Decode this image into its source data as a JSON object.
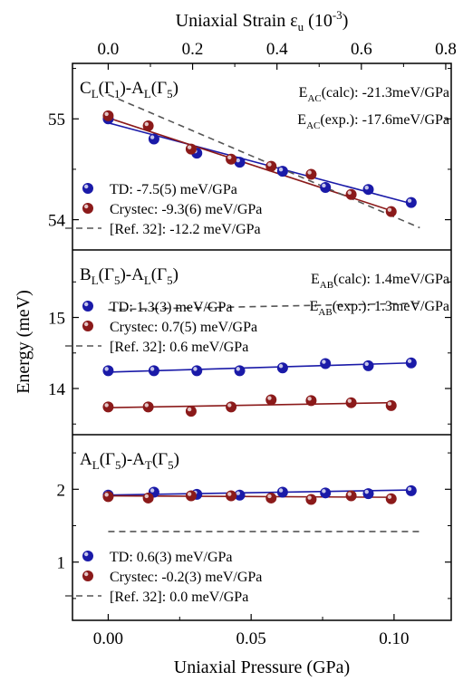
{
  "chart_data": {
    "type": "scatter",
    "x_axis_bottom": {
      "label": "Uniaxial Pressure (GPa)",
      "range": [
        -0.0125,
        0.12
      ],
      "ticks": [
        0.0,
        0.05,
        0.1
      ],
      "tick_labels": [
        "0.00",
        "0.05",
        "0.10"
      ]
    },
    "x_axis_top": {
      "label_main": "Uniaxial Strain ε",
      "label_sub": "u",
      "label_tail": " (10",
      "label_exp": "-3",
      "label_close": ")",
      "ticks": [
        0.0,
        0.2,
        0.4,
        0.6,
        0.8
      ],
      "tick_labels": [
        "0.0",
        "0.2",
        "0.4",
        "0.6",
        "0.8"
      ],
      "zero_at_pressure": 0.0,
      "pressure_per_unit": 0.1476
    },
    "y_label": "Energy (meV)",
    "colors": {
      "td": "#1a1aa8",
      "crystec": "#8b1a1a",
      "ref": "#555555",
      "ref_text": "#555555"
    },
    "panels": [
      {
        "id": "CA",
        "label_parts": [
          "C",
          "L",
          "(Γ",
          "1",
          ")-A",
          "L",
          "(Γ",
          "5",
          ")"
        ],
        "ylim": [
          53.7,
          55.55
        ],
        "yticks": [
          54,
          55
        ],
        "ytick_labels": [
          "54",
          "55"
        ],
        "annotations": [
          {
            "main": "E",
            "sub": "AC",
            "text": "(calc): -21.3meV/GPa"
          },
          {
            "main": "E",
            "sub": "AC",
            "text": "(exp.): -17.6meV/GPa"
          }
        ],
        "legend": [
          {
            "kind": "td",
            "text": "TD: -7.5(5) meV/GPa"
          },
          {
            "kind": "crystec",
            "text": "Crystec: -9.3(6) meV/GPa"
          },
          {
            "kind": "ref",
            "text": "[Ref. 32]: -12.2 meV/GPa"
          }
        ],
        "series": [
          {
            "name": "TD",
            "kind": "td",
            "x": [
              0.0,
              0.016,
              0.031,
              0.046,
              0.061,
              0.076,
              0.091,
              0.106
            ],
            "y": [
              55.0,
              54.8,
              54.66,
              54.57,
              54.48,
              54.32,
              54.3,
              54.17
            ],
            "fit": [
              [
                0.0,
                54.96
              ],
              [
                0.106,
                54.16
              ]
            ]
          },
          {
            "name": "Crystec",
            "kind": "crystec",
            "x": [
              0.0,
              0.014,
              0.029,
              0.043,
              0.057,
              0.071,
              0.085,
              0.099
            ],
            "y": [
              55.03,
              54.93,
              54.7,
              54.6,
              54.53,
              54.45,
              54.25,
              54.08
            ],
            "fit": [
              [
                0.0,
                55.01
              ],
              [
                0.099,
                54.09
              ]
            ]
          },
          {
            "name": "[Ref. 32]",
            "kind": "ref",
            "dashed": true,
            "fit": [
              [
                0.0,
                55.24
              ],
              [
                0.109,
                53.92
              ]
            ]
          }
        ]
      },
      {
        "id": "BA",
        "label_parts": [
          "B",
          "L",
          "(Γ",
          "5",
          ")-A",
          "L",
          "(Γ",
          "5",
          ")"
        ],
        "ylim": [
          13.35,
          15.95
        ],
        "yticks": [
          14,
          15
        ],
        "ytick_labels": [
          "14",
          "15"
        ],
        "annotations": [
          {
            "main": "E",
            "sub": "AB",
            "text": "(calc): 1.4meV/GPa"
          },
          {
            "main": "E",
            "sub": "AB",
            "text": "(exp.): 1.3meV/GPa"
          }
        ],
        "legend": [
          {
            "kind": "td",
            "text": "TD: 1.3(3) meV/GPa"
          },
          {
            "kind": "crystec",
            "text": "Crystec: 0.7(5) meV/GPa"
          },
          {
            "kind": "ref",
            "text": "[Ref. 32]: 0.6 meV/GPa"
          }
        ],
        "series": [
          {
            "name": "TD",
            "kind": "td",
            "x": [
              0.0,
              0.016,
              0.031,
              0.046,
              0.061,
              0.076,
              0.091,
              0.106
            ],
            "y": [
              14.25,
              14.25,
              14.25,
              14.25,
              14.29,
              14.35,
              14.32,
              14.36
            ],
            "fit": [
              [
                0.0,
                14.23
              ],
              [
                0.106,
                14.36
              ]
            ]
          },
          {
            "name": "Crystec",
            "kind": "crystec",
            "x": [
              0.0,
              0.014,
              0.029,
              0.043,
              0.057,
              0.071,
              0.085,
              0.099
            ],
            "y": [
              13.74,
              13.74,
              13.68,
              13.74,
              13.84,
              13.83,
              13.8,
              13.76
            ],
            "fit": [
              [
                0.0,
                13.73
              ],
              [
                0.099,
                13.8
              ]
            ]
          },
          {
            "name": "[Ref. 32]",
            "kind": "ref",
            "dashed": true,
            "fit": [
              [
                0.0,
                15.11
              ],
              [
                0.109,
                15.2
              ]
            ]
          }
        ]
      },
      {
        "id": "AA",
        "label_parts": [
          "A",
          "L",
          "(Γ",
          "5",
          ")-A",
          "T",
          "(Γ",
          "5",
          ")"
        ],
        "ylim": [
          0.2,
          2.75
        ],
        "yticks": [
          1,
          2
        ],
        "ytick_labels": [
          "1",
          "2"
        ],
        "annotations": [],
        "legend": [
          {
            "kind": "td",
            "text": "TD: 0.6(3) meV/GPa"
          },
          {
            "kind": "crystec",
            "text": "Crystec: -0.2(3) meV/GPa"
          },
          {
            "kind": "ref",
            "text": "[Ref. 32]: 0.0 meV/GPa"
          }
        ],
        "series": [
          {
            "name": "TD",
            "kind": "td",
            "x": [
              0.0,
              0.016,
              0.031,
              0.046,
              0.061,
              0.076,
              0.091,
              0.106
            ],
            "y": [
              1.92,
              1.96,
              1.93,
              1.92,
              1.96,
              1.95,
              1.94,
              1.98
            ],
            "fit": [
              [
                0.0,
                1.92
              ],
              [
                0.106,
                1.99
              ]
            ]
          },
          {
            "name": "Crystec",
            "kind": "crystec",
            "x": [
              0.0,
              0.014,
              0.029,
              0.043,
              0.057,
              0.071,
              0.085,
              0.099
            ],
            "y": [
              1.9,
              1.88,
              1.91,
              1.91,
              1.88,
              1.86,
              1.91,
              1.87
            ],
            "fit": [
              [
                0.0,
                1.91
              ],
              [
                0.099,
                1.89
              ]
            ]
          },
          {
            "name": "[Ref. 32]",
            "kind": "ref",
            "dashed": true,
            "fit": [
              [
                0.0,
                1.42
              ],
              [
                0.109,
                1.42
              ]
            ]
          }
        ]
      }
    ]
  }
}
